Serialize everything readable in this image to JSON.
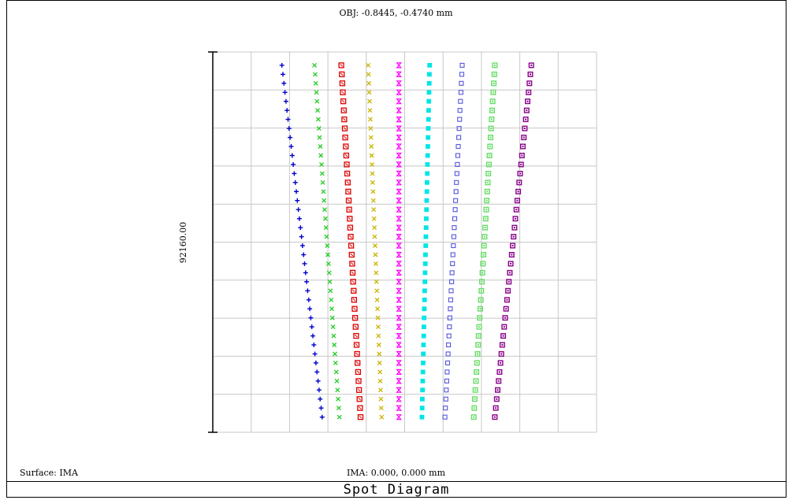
{
  "header": {
    "object_label": "OBJ: -0.8445, -0.4740 mm"
  },
  "footer": {
    "surface_label": "Surface: IMA",
    "image_label": "IMA: 0.000, 0.000 mm",
    "title": "Spot Diagram"
  },
  "chart_data": {
    "type": "scatter",
    "title": "Spot Diagram",
    "scale_bar_label": "92160.00",
    "grid": true,
    "grid_divisions": {
      "x": 10,
      "y": 10
    },
    "xlim": [
      0,
      10
    ],
    "ylim": [
      0,
      10
    ],
    "points_per_series": 40,
    "series": [
      {
        "marker": "plus",
        "color": "#0000cd",
        "x_top": 1.8,
        "x_bottom": 2.85
      },
      {
        "marker": "x",
        "color": "#22cc22",
        "x_top": 2.65,
        "x_bottom": 3.3
      },
      {
        "marker": "square-x",
        "color": "#dd0000",
        "x_top": 3.35,
        "x_bottom": 3.85
      },
      {
        "marker": "x",
        "color": "#c8b400",
        "x_top": 4.05,
        "x_bottom": 4.4
      },
      {
        "marker": "hourglass",
        "color": "#ff00ff",
        "x_top": 4.85,
        "x_bottom": 4.85
      },
      {
        "marker": "filled-square",
        "color": "#00e5e5",
        "x_top": 5.65,
        "x_bottom": 5.45
      },
      {
        "marker": "open-square",
        "color": "#5555dd",
        "x_top": 6.5,
        "x_bottom": 6.05
      },
      {
        "marker": "square-dot",
        "color": "#66dd66",
        "x_top": 7.35,
        "x_bottom": 6.8
      },
      {
        "marker": "square-dot",
        "color": "#880088",
        "x_top": 8.3,
        "x_bottom": 7.35
      }
    ]
  }
}
